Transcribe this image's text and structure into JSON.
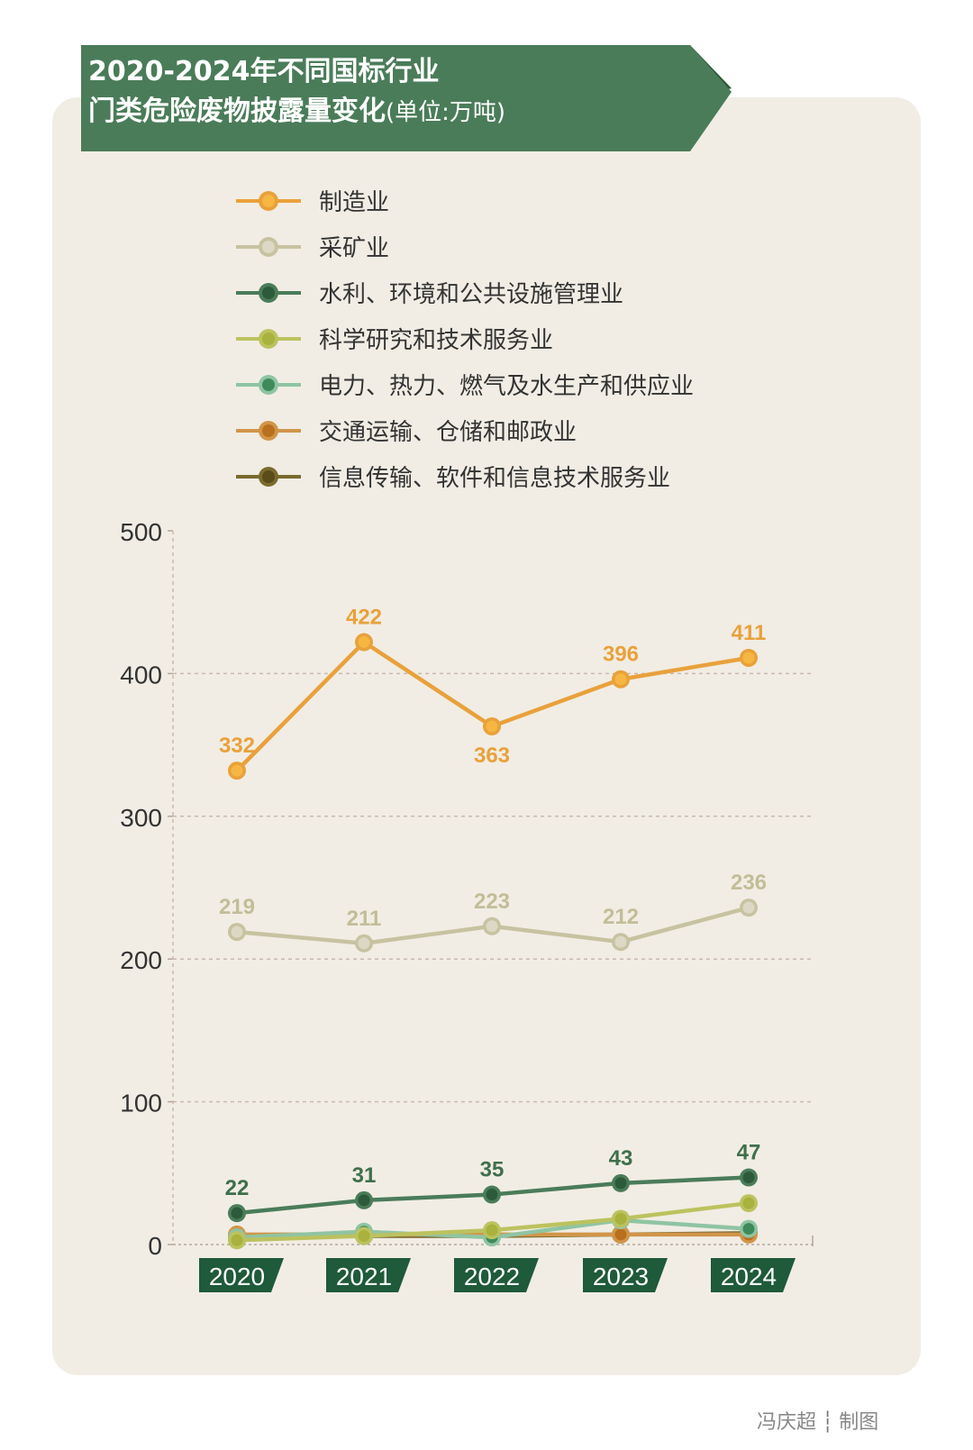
{
  "title_line1": "2020-2024年不同国标行业",
  "title_line2": "门类危险废物披露量变化",
  "title_unit": "(单位:万吨)",
  "credit_author": "冯庆超",
  "credit_separator": "┆",
  "credit_role": "制图",
  "colors": {
    "banner": "#4a7c59",
    "banner_tab": "#2c5b37",
    "card": "#f1ede4",
    "year_label_bg": "#1f5a3a"
  },
  "chart_data": {
    "type": "line",
    "categories": [
      "2020",
      "2021",
      "2022",
      "2023",
      "2024"
    ],
    "ylim": [
      0,
      500
    ],
    "yticks": [
      "0",
      "100",
      "200",
      "300",
      "400",
      "500"
    ],
    "grid": true,
    "legend_position": "top",
    "series": [
      {
        "name": "制造业",
        "values": [
          332,
          422,
          363,
          396,
          411
        ],
        "labels": [
          "332",
          "422",
          "363",
          "396",
          "411"
        ],
        "color": "#e9a13b",
        "inner": "#f5b642",
        "label_color": "#e9a13b"
      },
      {
        "name": "采矿业",
        "values": [
          219,
          211,
          223,
          212,
          236
        ],
        "labels": [
          "219",
          "211",
          "223",
          "212",
          "236"
        ],
        "color": "#c7c2a0",
        "inner": "#dcd8c5",
        "label_color": "#c2bd98"
      },
      {
        "name": "水利、环境和公共设施管理业",
        "values": [
          22,
          31,
          35,
          43,
          47
        ],
        "labels": [
          "22",
          "31",
          "35",
          "43",
          "47"
        ],
        "color": "#4a7c59",
        "inner": "#2e5a3c",
        "label_color": "#3f6f4c"
      },
      {
        "name": "科学研究和技术服务业",
        "values": [
          3,
          6,
          10,
          18,
          29
        ],
        "labels": [],
        "color": "#bcc25f",
        "inner": "#a8b23c",
        "label_color": "#bcc25f"
      },
      {
        "name": "电力、热力、燃气及水生产和供应业",
        "values": [
          5,
          9,
          5,
          17,
          11
        ],
        "labels": [],
        "color": "#8fc4a3",
        "inner": "#3f8a5b",
        "label_color": "#8fc4a3"
      },
      {
        "name": "交通运输、仓储和邮政业",
        "values": [
          7,
          7,
          7,
          7,
          7
        ],
        "labels": [],
        "color": "#d1954a",
        "inner": "#b8701f",
        "label_color": "#d1954a"
      },
      {
        "name": "信息传输、软件和信息技术服务业",
        "values": [
          6,
          6,
          6,
          7,
          8
        ],
        "labels": [],
        "color": "#7a6b2e",
        "inner": "#5b4d19",
        "label_color": "#7a6b2e"
      }
    ]
  }
}
